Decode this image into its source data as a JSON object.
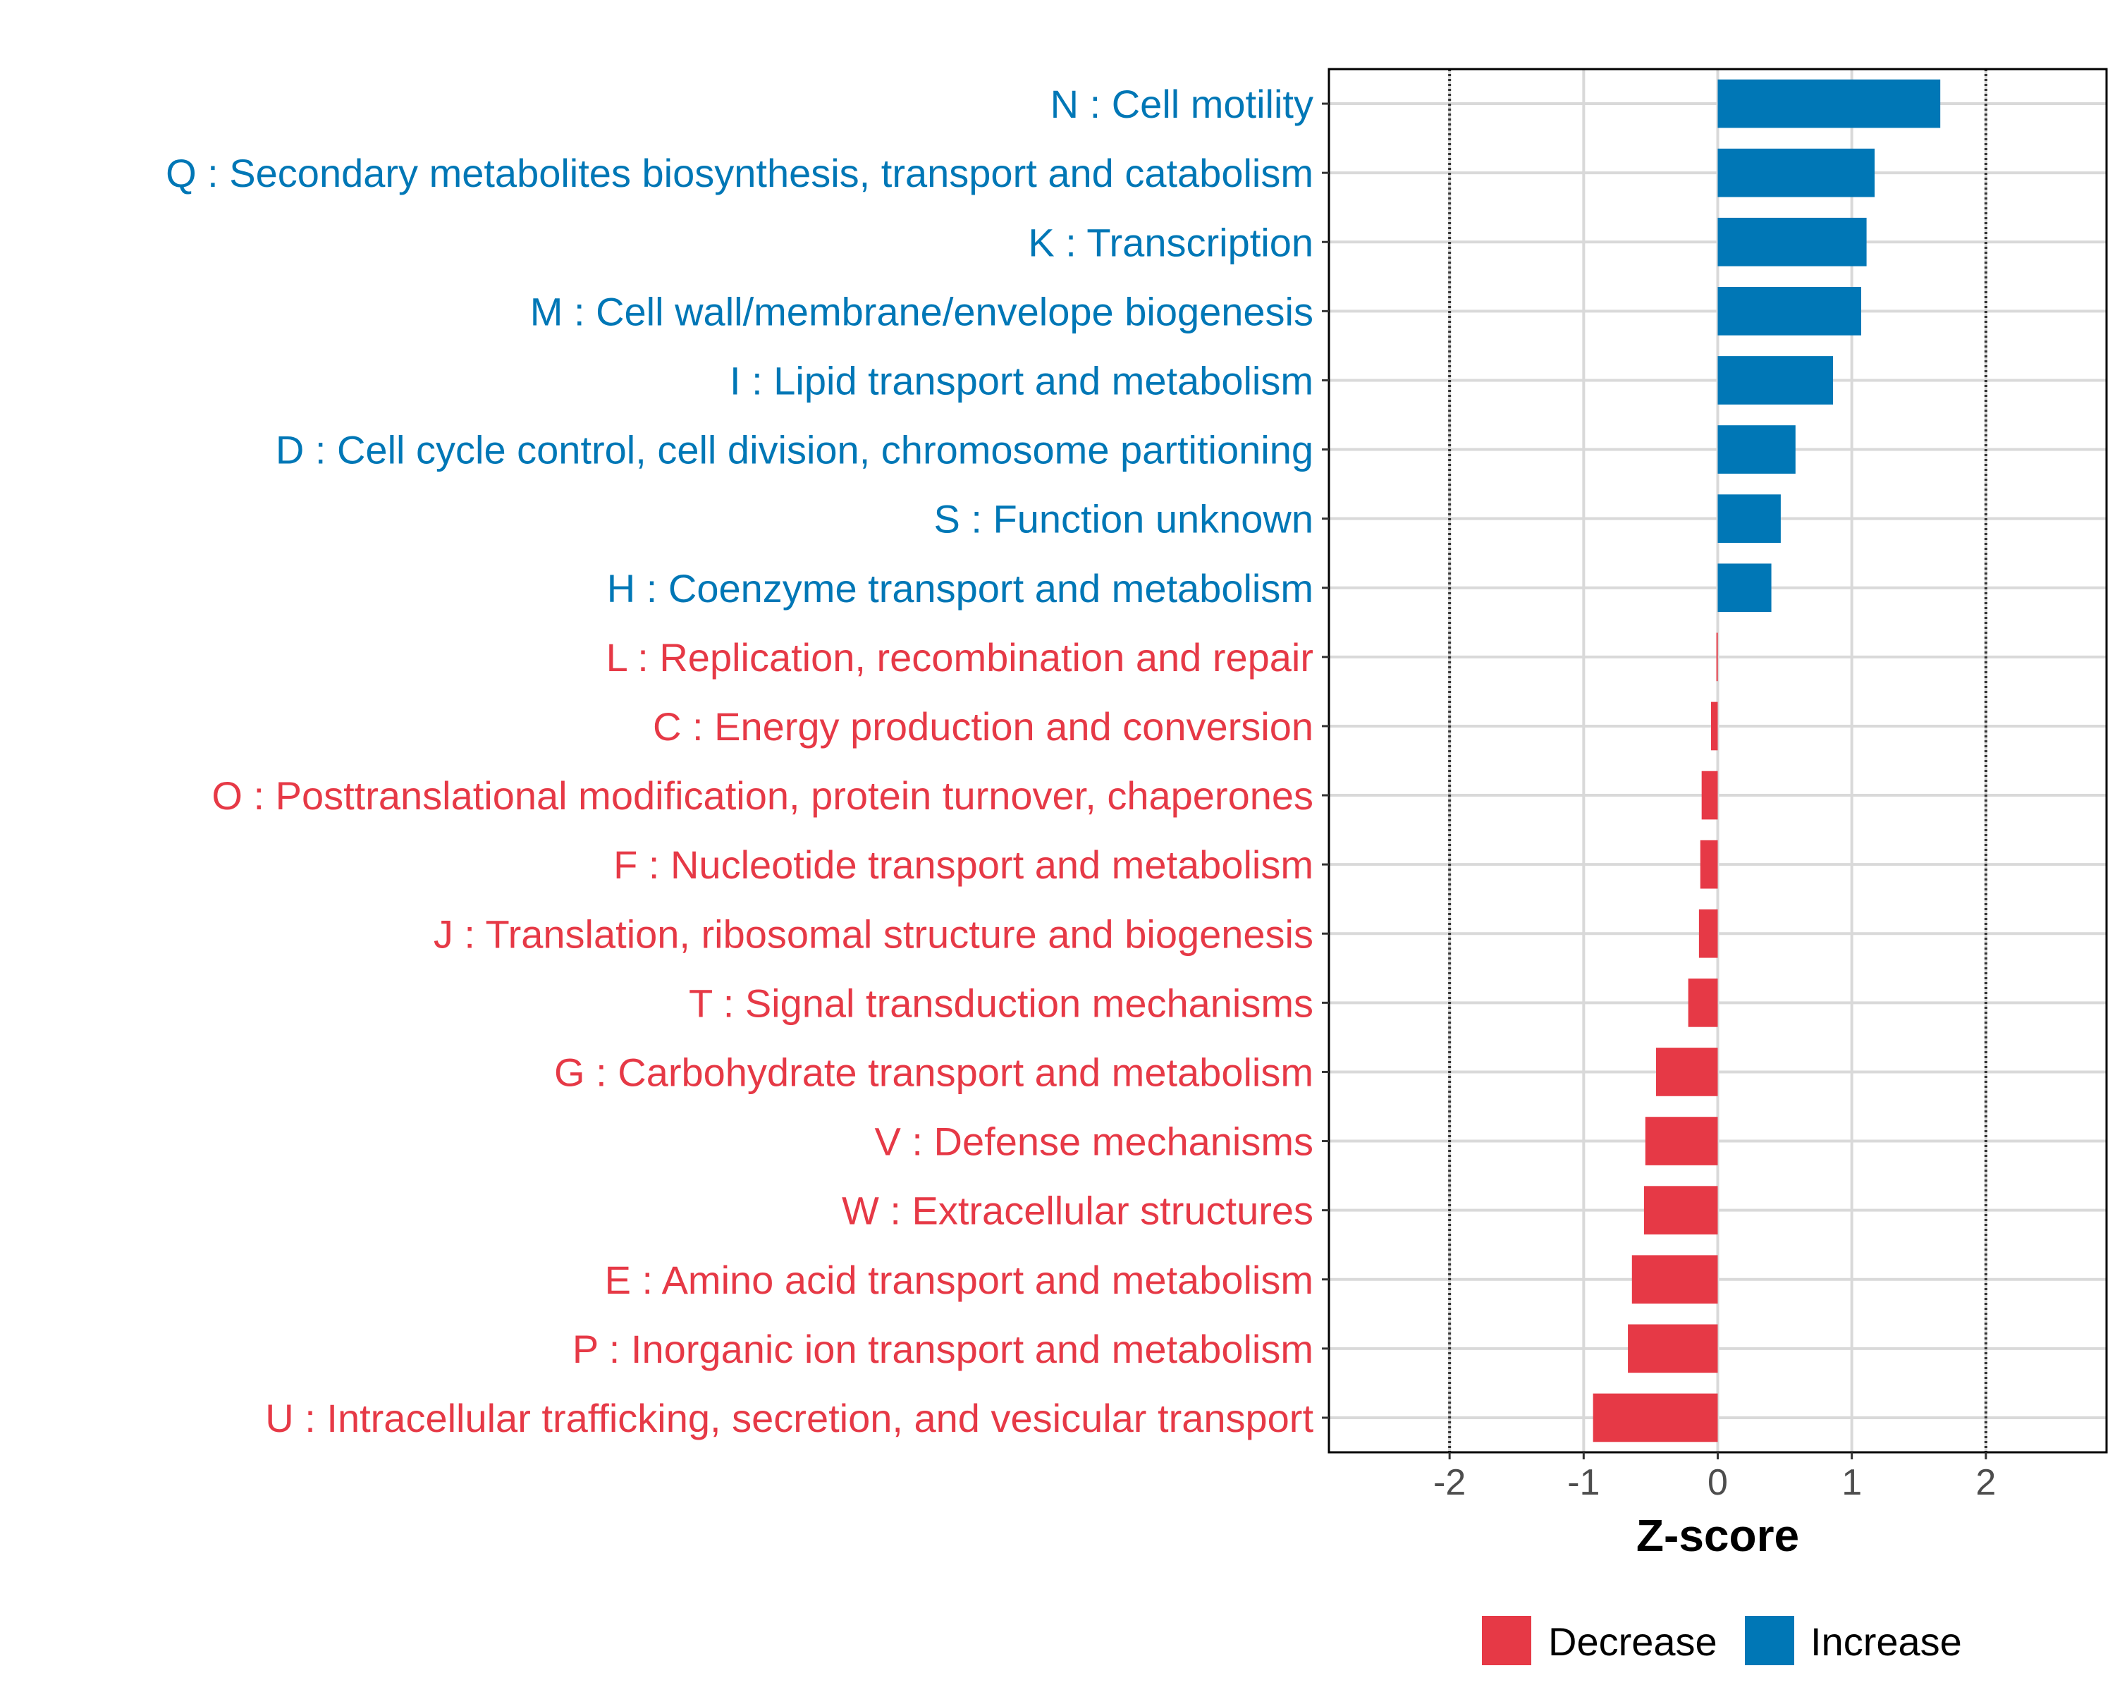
{
  "chart_data": {
    "type": "bar",
    "orientation": "horizontal",
    "title": "",
    "xlabel": "Z-score",
    "ylabel": "",
    "xlim": [
      -2.9,
      2.9
    ],
    "xticks": [
      -2,
      -1,
      0,
      1,
      2
    ],
    "xtick_labels": [
      "-2",
      "-1",
      "0",
      "1",
      "2"
    ],
    "reference_lines": [
      -2,
      2
    ],
    "grid": true,
    "legend_position": "bottom",
    "colors": {
      "Decrease": "#e63946",
      "Increase": "#0077b6"
    },
    "legend": [
      {
        "name": "Decrease"
      },
      {
        "name": "Increase"
      }
    ],
    "categories": [
      {
        "label": "N : Cell motility",
        "value": 1.66,
        "direction": "Increase"
      },
      {
        "label": "Q : Secondary metabolites biosynthesis, transport and catabolism",
        "value": 1.17,
        "direction": "Increase"
      },
      {
        "label": "K : Transcription",
        "value": 1.11,
        "direction": "Increase"
      },
      {
        "label": "M : Cell wall/membrane/envelope biogenesis",
        "value": 1.07,
        "direction": "Increase"
      },
      {
        "label": "I : Lipid transport and metabolism",
        "value": 0.86,
        "direction": "Increase"
      },
      {
        "label": "D : Cell cycle control, cell division, chromosome partitioning",
        "value": 0.58,
        "direction": "Increase"
      },
      {
        "label": "S : Function unknown",
        "value": 0.47,
        "direction": "Increase"
      },
      {
        "label": "H : Coenzyme transport and metabolism",
        "value": 0.4,
        "direction": "Increase"
      },
      {
        "label": "L : Replication, recombination and repair",
        "value": -0.01,
        "direction": "Decrease"
      },
      {
        "label": "C : Energy production and conversion",
        "value": -0.05,
        "direction": "Decrease"
      },
      {
        "label": "O : Posttranslational modification, protein turnover, chaperones",
        "value": -0.12,
        "direction": "Decrease"
      },
      {
        "label": "F : Nucleotide transport and metabolism",
        "value": -0.13,
        "direction": "Decrease"
      },
      {
        "label": "J : Translation, ribosomal structure and biogenesis",
        "value": -0.14,
        "direction": "Decrease"
      },
      {
        "label": "T : Signal transduction mechanisms",
        "value": -0.22,
        "direction": "Decrease"
      },
      {
        "label": "G : Carbohydrate transport and metabolism",
        "value": -0.46,
        "direction": "Decrease"
      },
      {
        "label": "V : Defense mechanisms",
        "value": -0.54,
        "direction": "Decrease"
      },
      {
        "label": "W : Extracellular structures",
        "value": -0.55,
        "direction": "Decrease"
      },
      {
        "label": "E : Amino acid transport and metabolism",
        "value": -0.64,
        "direction": "Decrease"
      },
      {
        "label": "P : Inorganic ion transport and metabolism",
        "value": -0.67,
        "direction": "Decrease"
      },
      {
        "label": "U : Intracellular trafficking, secretion, and vesicular transport",
        "value": -0.93,
        "direction": "Decrease"
      }
    ]
  }
}
